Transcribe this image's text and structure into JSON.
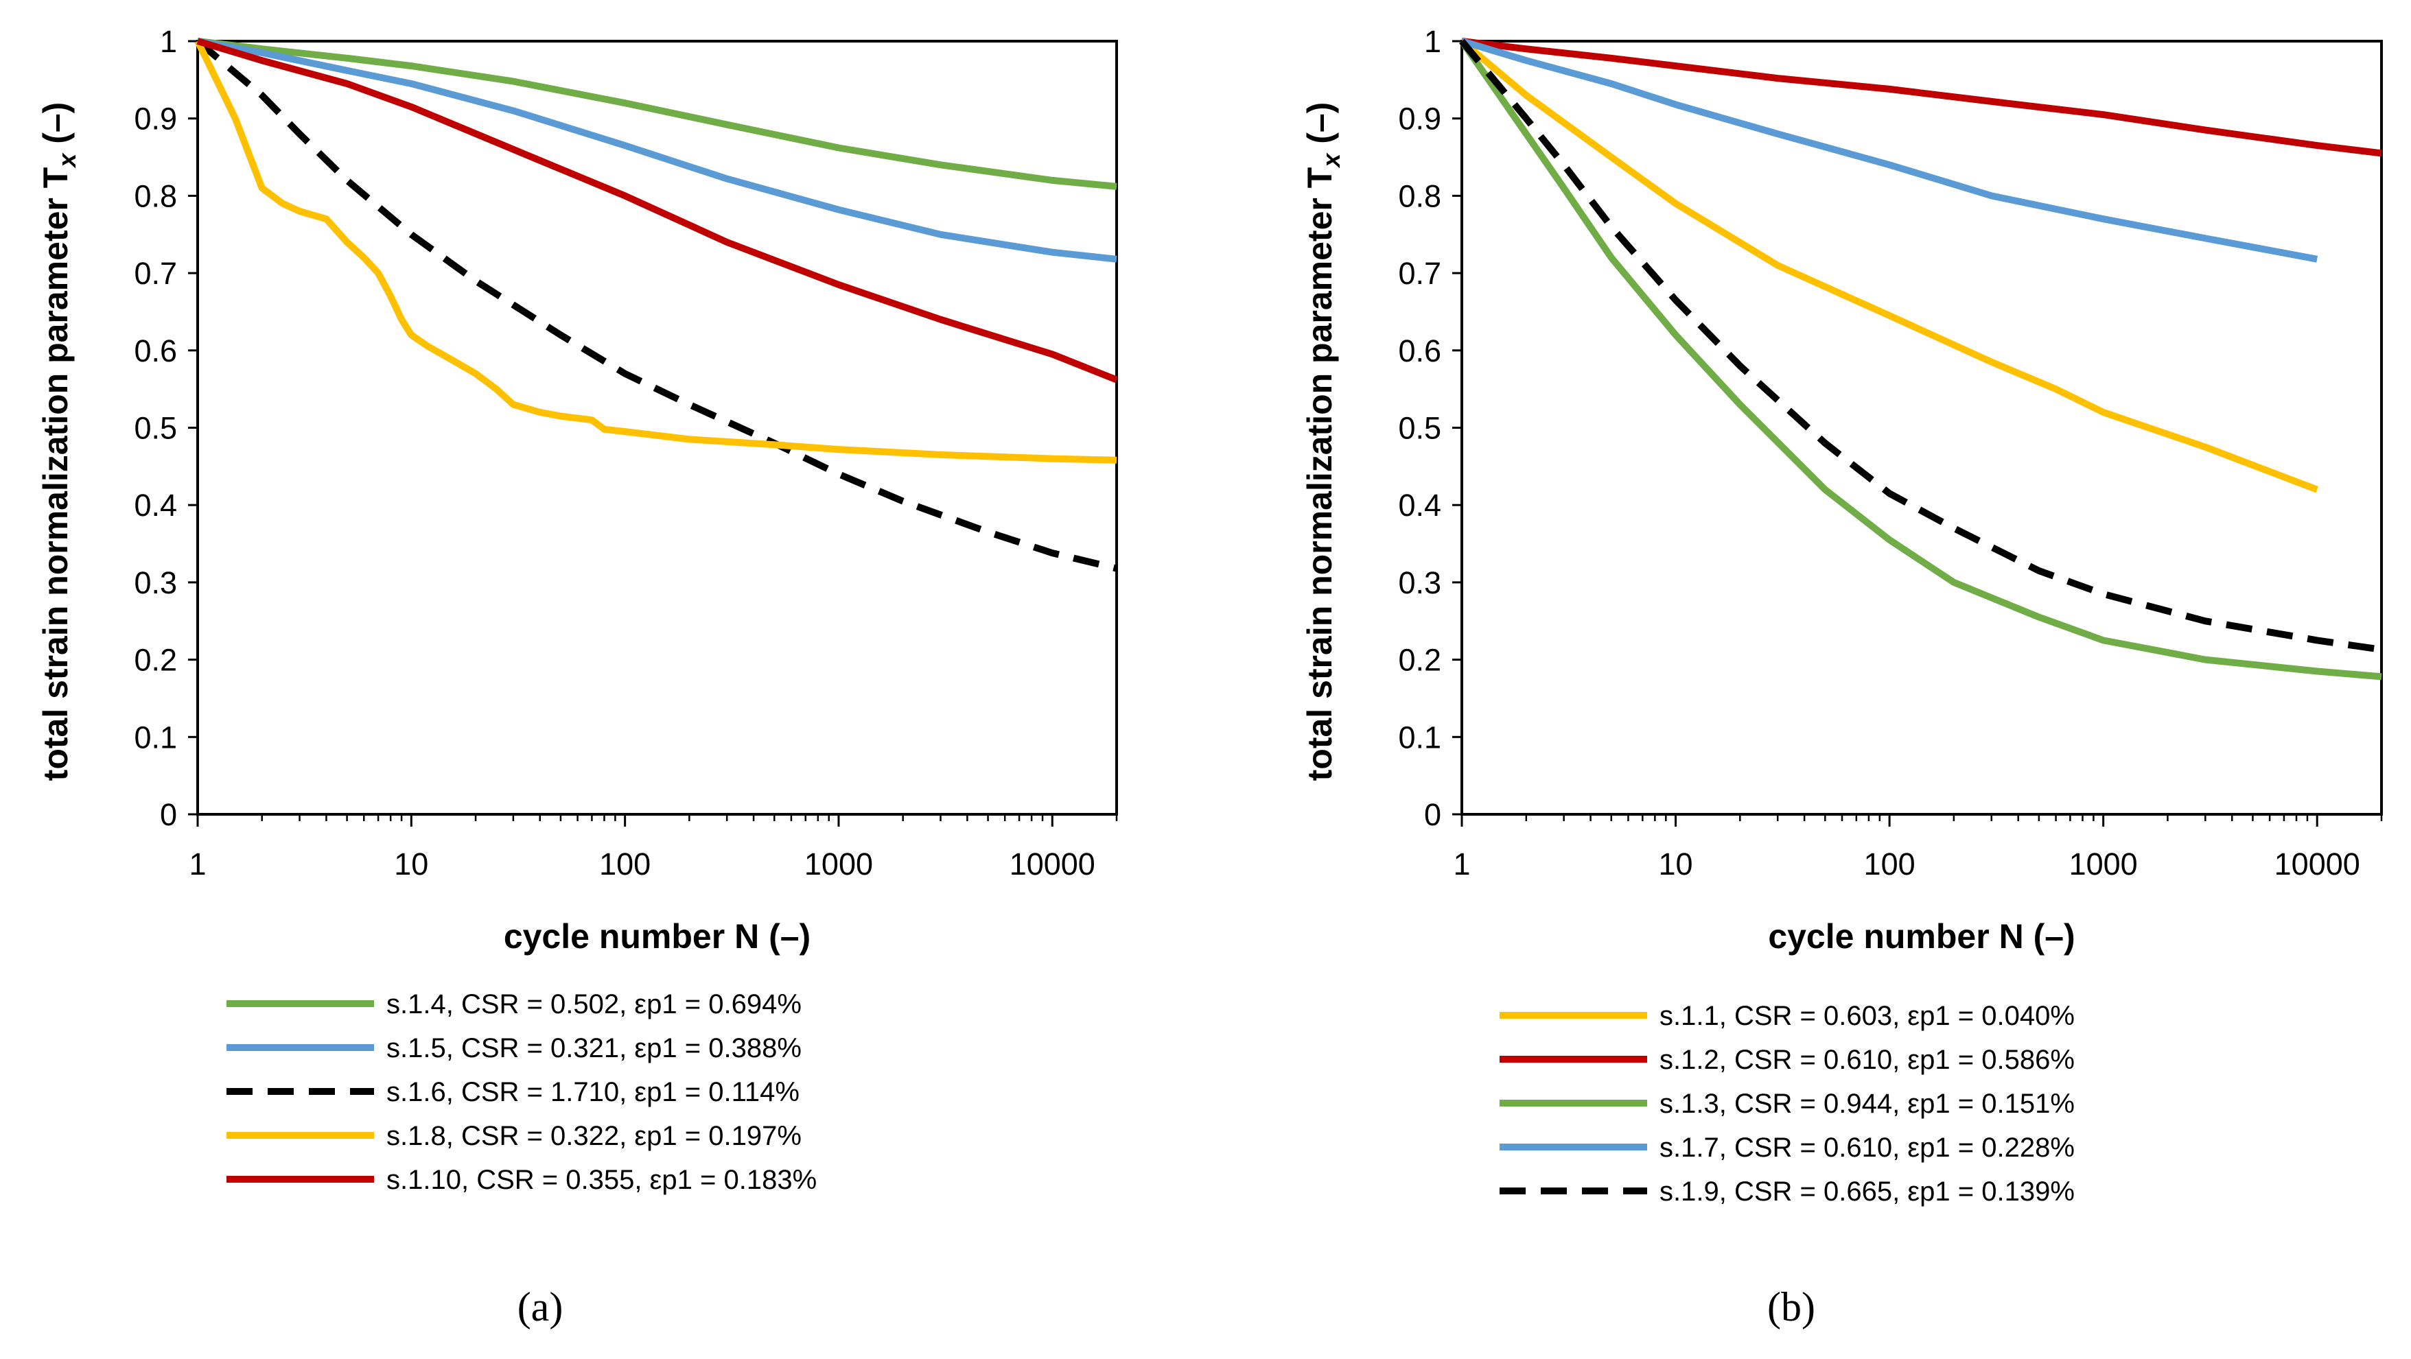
{
  "colors": {
    "green": "#70AD47",
    "blue": "#5B9BD5",
    "black": "#000000",
    "yellow": "#FFC000",
    "red": "#C00000"
  },
  "chart_data": [
    {
      "type": "line",
      "panel_label": "(a)",
      "xlabel": "cycle number N (–)",
      "ylabel": "total strain normalization parameter T",
      "ylabel_sub": "x",
      "ylabel_unit": " (–)",
      "x_scale": "log",
      "xlim": [
        1,
        20000
      ],
      "ylim": [
        0,
        1
      ],
      "x_ticks": [
        1,
        10,
        100,
        1000,
        10000
      ],
      "x_tick_labels": [
        "1",
        "10",
        "100",
        "1000",
        "10000"
      ],
      "y_ticks": [
        0,
        0.1,
        0.2,
        0.3,
        0.4,
        0.5,
        0.6,
        0.7,
        0.8,
        0.9,
        1
      ],
      "y_tick_labels": [
        "0",
        "0.1",
        "0.2",
        "0.3",
        "0.4",
        "0.5",
        "0.6",
        "0.7",
        "0.8",
        "0.9",
        "1"
      ],
      "grid": false,
      "legend_position": "bottom",
      "series": [
        {
          "name": "s.1.4, CSR = 0.502,  εp1 = 0.694%",
          "color": "#70AD47",
          "dashed": false,
          "x": [
            1,
            2,
            5,
            10,
            30,
            100,
            300,
            1000,
            3000,
            10000,
            20000
          ],
          "y": [
            1,
            0.99,
            0.978,
            0.968,
            0.948,
            0.92,
            0.892,
            0.862,
            0.84,
            0.82,
            0.812
          ]
        },
        {
          "name": "s.1.5, CSR = 0.321,  εp1 = 0.388%",
          "color": "#5B9BD5",
          "dashed": false,
          "x": [
            1,
            2,
            5,
            10,
            30,
            100,
            300,
            1000,
            3000,
            10000,
            20000
          ],
          "y": [
            1,
            0.985,
            0.962,
            0.945,
            0.91,
            0.865,
            0.822,
            0.782,
            0.75,
            0.727,
            0.718
          ]
        },
        {
          "name": "s.1.6, CSR = 1.710,  εp1 = 0.114%",
          "color": "#000000",
          "dashed": true,
          "x": [
            1,
            2,
            3,
            5,
            10,
            20,
            50,
            100,
            200,
            500,
            1000,
            2000,
            5000,
            10000,
            20000
          ],
          "y": [
            1,
            0.93,
            0.88,
            0.82,
            0.75,
            0.69,
            0.62,
            0.57,
            0.53,
            0.48,
            0.44,
            0.405,
            0.365,
            0.338,
            0.318
          ]
        },
        {
          "name": "s.1.8, CSR = 0.322,  εp1 = 0.197%",
          "color": "#FFC000",
          "dashed": false,
          "x": [
            1,
            1.5,
            2,
            2.5,
            3,
            4,
            5,
            6,
            7,
            8,
            9,
            10,
            12,
            15,
            20,
            25,
            30,
            40,
            50,
            70,
            80,
            100,
            200,
            500,
            1000,
            3000,
            10000,
            20000
          ],
          "y": [
            1,
            0.9,
            0.81,
            0.79,
            0.78,
            0.77,
            0.74,
            0.72,
            0.7,
            0.67,
            0.64,
            0.62,
            0.605,
            0.59,
            0.57,
            0.55,
            0.53,
            0.52,
            0.515,
            0.51,
            0.498,
            0.495,
            0.485,
            0.478,
            0.472,
            0.465,
            0.46,
            0.458
          ]
        },
        {
          "name": "s.1.10, CSR = 0.355,  εp1 = 0.183%",
          "color": "#C00000",
          "dashed": false,
          "x": [
            1,
            2,
            5,
            10,
            30,
            100,
            300,
            1000,
            3000,
            10000,
            20000
          ],
          "y": [
            1,
            0.975,
            0.945,
            0.915,
            0.86,
            0.8,
            0.74,
            0.685,
            0.64,
            0.595,
            0.562
          ]
        }
      ]
    },
    {
      "type": "line",
      "panel_label": "(b)",
      "xlabel": "cycle number N (–)",
      "ylabel": "total strain normalization parameter T",
      "ylabel_sub": "x",
      "ylabel_unit": " (–)",
      "x_scale": "log",
      "xlim": [
        1,
        20000
      ],
      "ylim": [
        0,
        1
      ],
      "x_ticks": [
        1,
        10,
        100,
        1000,
        10000
      ],
      "x_tick_labels": [
        "1",
        "10",
        "100",
        "1000",
        "10000"
      ],
      "y_ticks": [
        0,
        0.1,
        0.2,
        0.3,
        0.4,
        0.5,
        0.6,
        0.7,
        0.8,
        0.9,
        1
      ],
      "y_tick_labels": [
        "0",
        "0.1",
        "0.2",
        "0.3",
        "0.4",
        "0.5",
        "0.6",
        "0.7",
        "0.8",
        "0.9",
        "1"
      ],
      "grid": false,
      "legend_position": "bottom",
      "series": [
        {
          "name": "s.1.1, CSR = 0.603,  εp1 = 0.040%",
          "color": "#FFC000",
          "dashed": false,
          "x": [
            1,
            2,
            5,
            10,
            30,
            100,
            300,
            600,
            1000,
            3000,
            10000
          ],
          "y": [
            1,
            0.93,
            0.85,
            0.79,
            0.71,
            0.645,
            0.585,
            0.55,
            0.52,
            0.475,
            0.42
          ]
        },
        {
          "name": "s.1.2, CSR = 0.610,  εp1 = 0.586%",
          "color": "#C00000",
          "dashed": false,
          "x": [
            1,
            2,
            5,
            10,
            30,
            100,
            300,
            1000,
            3000,
            10000,
            20000
          ],
          "y": [
            1,
            0.99,
            0.978,
            0.968,
            0.952,
            0.938,
            0.922,
            0.905,
            0.885,
            0.865,
            0.855
          ]
        },
        {
          "name": "s.1.3, CSR = 0.944,  εp1 = 0.151%",
          "color": "#70AD47",
          "dashed": false,
          "x": [
            1,
            2,
            3,
            5,
            10,
            20,
            50,
            100,
            200,
            500,
            1000,
            3000,
            10000,
            20000
          ],
          "y": [
            1,
            0.88,
            0.81,
            0.72,
            0.62,
            0.53,
            0.42,
            0.355,
            0.3,
            0.255,
            0.225,
            0.2,
            0.185,
            0.178
          ]
        },
        {
          "name": "s.1.7, CSR = 0.610,  εp1 = 0.228%",
          "color": "#5B9BD5",
          "dashed": false,
          "x": [
            1,
            2,
            5,
            10,
            30,
            100,
            300,
            1000,
            3000,
            10000
          ],
          "y": [
            1,
            0.975,
            0.945,
            0.918,
            0.88,
            0.84,
            0.8,
            0.77,
            0.745,
            0.718
          ]
        },
        {
          "name": "s.1.9, CSR = 0.665,  εp1 = 0.139%",
          "color": "#000000",
          "dashed": true,
          "x": [
            1,
            2,
            3,
            5,
            10,
            20,
            50,
            100,
            200,
            500,
            1000,
            3000,
            10000,
            20000
          ],
          "y": [
            1,
            0.9,
            0.84,
            0.76,
            0.665,
            0.58,
            0.48,
            0.415,
            0.37,
            0.315,
            0.285,
            0.25,
            0.225,
            0.213
          ]
        }
      ]
    }
  ]
}
